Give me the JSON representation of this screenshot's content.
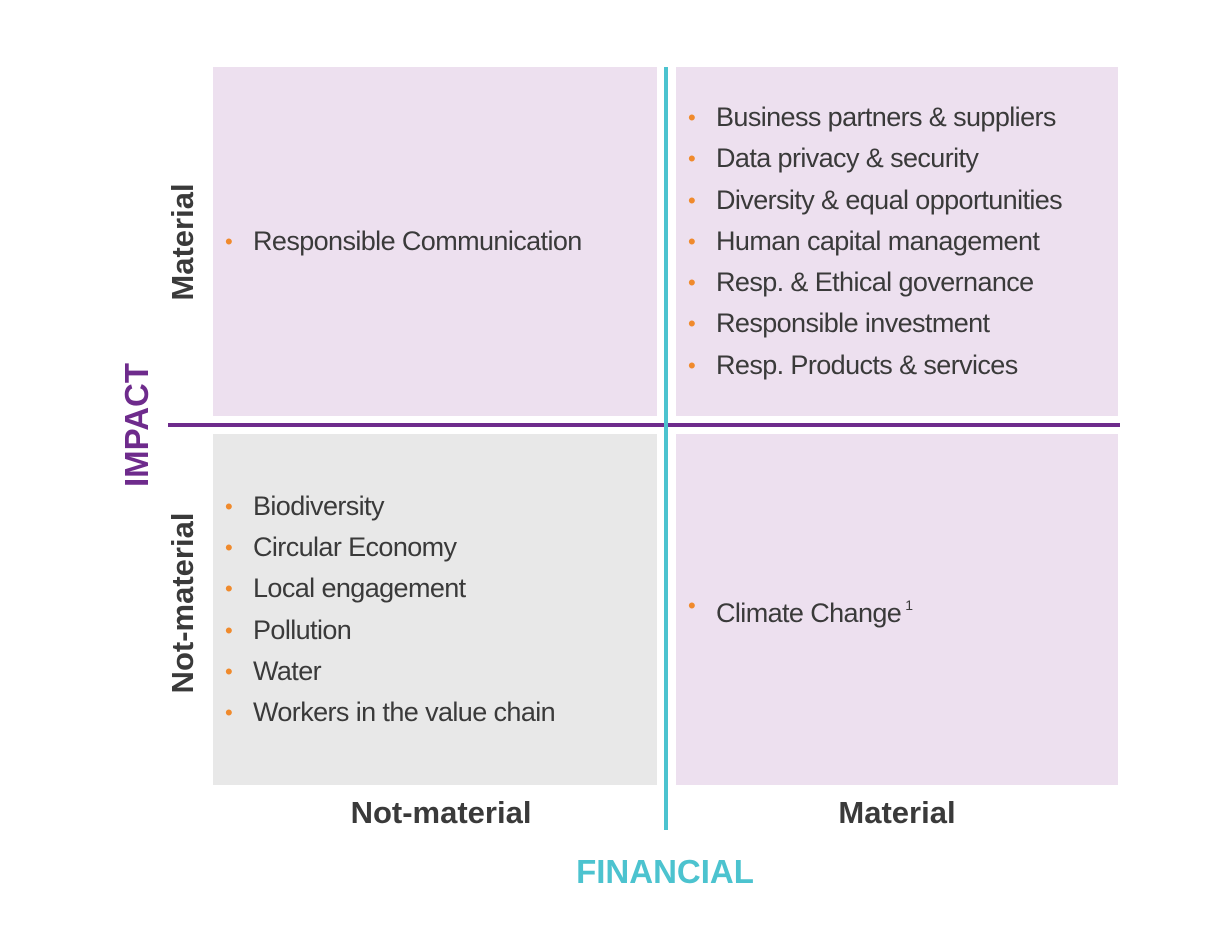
{
  "y_axis": {
    "title": "IMPACT",
    "labels": [
      "Material",
      "Not-material"
    ]
  },
  "x_axis": {
    "title": "FINANCIAL",
    "labels": [
      "Not-material",
      "Material"
    ]
  },
  "quadrants": {
    "top_left": {
      "items": [
        {
          "text": "Responsible Communication"
        }
      ]
    },
    "top_right": {
      "items": [
        {
          "text": "Business partners & suppliers"
        },
        {
          "text": "Data privacy & security"
        },
        {
          "text": "Diversity & equal opportunities"
        },
        {
          "text": "Human capital management"
        },
        {
          "text": "Resp. & Ethical governance"
        },
        {
          "text": "Responsible investment"
        },
        {
          "text": "Resp. Products & services"
        }
      ]
    },
    "bottom_left": {
      "items": [
        {
          "text": "Biodiversity"
        },
        {
          "text": "Circular Economy"
        },
        {
          "text": "Local engagement"
        },
        {
          "text": "Pollution"
        },
        {
          "text": "Water"
        },
        {
          "text": "Workers in the value chain"
        }
      ]
    },
    "bottom_right": {
      "items": [
        {
          "text": "Climate Change",
          "footnote": "1"
        }
      ]
    }
  }
}
